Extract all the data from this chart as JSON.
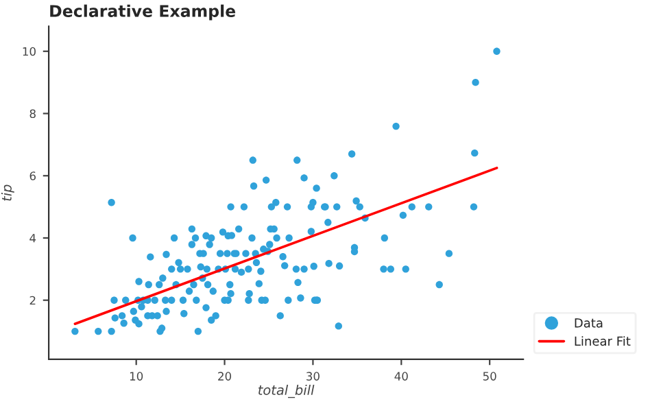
{
  "chart_data": {
    "type": "scatter",
    "title": "Declarative Example",
    "xlabel": "total_bill",
    "ylabel": "tip",
    "xlim": [
      0.1,
      53.8
    ],
    "ylim": [
      0.1,
      10.8
    ],
    "xticks": [
      10,
      20,
      30,
      40,
      50
    ],
    "yticks": [
      2,
      4,
      6,
      8,
      10
    ],
    "grid": false,
    "legend": "bottom right",
    "series": [
      {
        "name": "Data",
        "marker": "circle",
        "color": "#30a2da",
        "x": [
          3.07,
          5.7,
          7.2,
          7.2,
          7.5,
          7.6,
          8.4,
          8.6,
          8.8,
          9.6,
          9.7,
          9.9,
          10.2,
          10.3,
          10.3,
          10.6,
          10.8,
          11.3,
          11.3,
          11.4,
          11.6,
          11.8,
          12.1,
          12.4,
          12.6,
          12.7,
          12.9,
          13.0,
          13.3,
          13.4,
          13.4,
          14.0,
          14.0,
          14.3,
          14.5,
          14.8,
          15.0,
          15.3,
          15.4,
          15.8,
          16.0,
          16.3,
          16.3,
          16.5,
          16.7,
          16.8,
          17.0,
          17.2,
          17.3,
          17.5,
          17.6,
          17.9,
          17.9,
          18.0,
          18.1,
          18.3,
          18.5,
          18.5,
          18.7,
          19.0,
          19.3,
          19.5,
          19.8,
          20.0,
          20.1,
          20.3,
          20.4,
          20.4,
          20.6,
          20.7,
          20.7,
          20.8,
          21.1,
          21.2,
          21.3,
          21.6,
          21.9,
          22.2,
          22.4,
          22.7,
          22.7,
          22.8,
          23.1,
          23.2,
          23.3,
          23.5,
          23.6,
          23.9,
          24.1,
          24.2,
          24.4,
          24.6,
          24.7,
          24.9,
          25.1,
          25.2,
          25.3,
          25.6,
          25.8,
          25.9,
          26.3,
          26.6,
          26.8,
          27.1,
          27.2,
          27.3,
          28.1,
          28.2,
          28.3,
          28.6,
          29.0,
          29.0,
          29.8,
          29.8,
          30.0,
          30.1,
          30.2,
          30.4,
          30.4,
          30.5,
          31.3,
          31.4,
          31.7,
          31.8,
          32.4,
          32.7,
          32.9,
          33.0,
          34.4,
          34.7,
          34.7,
          34.9,
          35.3,
          35.9,
          38.0,
          38.1,
          38.8,
          39.4,
          40.2,
          40.5,
          41.2,
          43.1,
          44.3,
          45.4,
          48.2,
          48.3,
          48.4,
          50.8
        ],
        "values": [
          1.0,
          1.0,
          1.0,
          5.14,
          2.0,
          1.43,
          1.5,
          1.26,
          2.0,
          4.0,
          1.64,
          1.36,
          2.0,
          2.6,
          1.24,
          1.79,
          2.0,
          2.0,
          1.5,
          2.5,
          3.39,
          1.5,
          2.0,
          1.5,
          2.5,
          1.0,
          1.1,
          2.71,
          2.0,
          3.47,
          1.64,
          2.0,
          3.0,
          4.0,
          2.5,
          3.21,
          3.0,
          2.0,
          1.57,
          3.0,
          2.29,
          4.29,
          3.79,
          2.5,
          4.0,
          2.0,
          1.0,
          3.5,
          3.07,
          2.71,
          3.5,
          1.76,
          4.07,
          3.0,
          2.5,
          3.79,
          4.0,
          1.36,
          2.29,
          1.5,
          3.0,
          3.5,
          4.19,
          2.0,
          3.0,
          3.5,
          2.0,
          4.07,
          2.5,
          5.0,
          2.21,
          4.08,
          3.5,
          3.0,
          3.5,
          4.29,
          2.9,
          5.0,
          3.5,
          2.0,
          3.0,
          2.21,
          4.0,
          6.5,
          5.67,
          3.5,
          3.21,
          2.53,
          2.93,
          2.0,
          3.64,
          2.0,
          5.86,
          3.57,
          3.79,
          4.29,
          5.0,
          4.29,
          5.14,
          4.0,
          1.5,
          3.4,
          3.11,
          5.0,
          2.0,
          4.0,
          3.0,
          6.5,
          2.57,
          2.07,
          3.0,
          5.93,
          5.0,
          4.21,
          5.14,
          3.09,
          2.0,
          2.0,
          5.6,
          2.0,
          5.0,
          5.0,
          4.5,
          3.18,
          6.0,
          5.0,
          1.17,
          3.1,
          6.7,
          3.69,
          3.56,
          5.19,
          5.0,
          4.64,
          3.0,
          4.0,
          3.0,
          7.59,
          4.73,
          3.0,
          5.0,
          5.0,
          2.5,
          3.5,
          5.0,
          6.73,
          9.0,
          10.0
        ]
      },
      {
        "name": "Linear Fit",
        "type": "line",
        "color": "#ff0000",
        "line_style": "solid",
        "x": [
          3.07,
          50.81
        ],
        "values": [
          1.24,
          6.25
        ]
      }
    ]
  }
}
